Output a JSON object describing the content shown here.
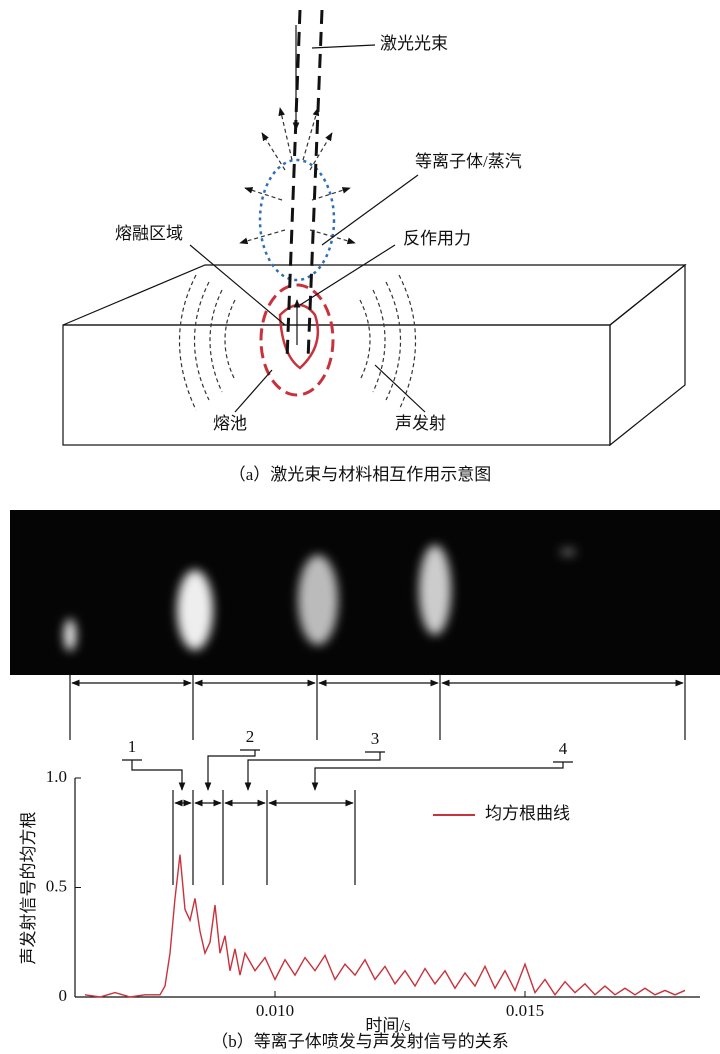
{
  "diagram": {
    "labels": {
      "laser_beam": "激光光束",
      "plasma_vapor": "等离子体/蒸汽",
      "melt_zone": "熔融区域",
      "reaction_force": "反作用力",
      "melt_pool": "熔池",
      "acoustic_emission": "声发射"
    },
    "caption": "（a）激光束与材料相互作用示意图"
  },
  "image_strip": {
    "segment_labels": [
      "1",
      "2",
      "3",
      "4"
    ]
  },
  "chart_data": {
    "type": "line",
    "xlabel": "时间/s",
    "ylabel": "声发射信号的均方根",
    "caption": "（b）等离子体喷发与声发射信号的关系",
    "x": [
      0.0062,
      0.0065,
      0.0068,
      0.0071,
      0.0074,
      0.0077,
      0.0078,
      0.0079,
      0.008,
      0.0081,
      0.0082,
      0.0083,
      0.0084,
      0.0085,
      0.0086,
      0.0087,
      0.0088,
      0.0089,
      0.009,
      0.0091,
      0.0092,
      0.0093,
      0.0094,
      0.0096,
      0.0098,
      0.01,
      0.0102,
      0.0104,
      0.0106,
      0.0108,
      0.011,
      0.0112,
      0.0114,
      0.0116,
      0.0118,
      0.012,
      0.0122,
      0.0124,
      0.0126,
      0.0128,
      0.013,
      0.0132,
      0.0134,
      0.0136,
      0.0138,
      0.014,
      0.0142,
      0.0144,
      0.0146,
      0.0148,
      0.015,
      0.0152,
      0.0154,
      0.0156,
      0.0158,
      0.016,
      0.0162,
      0.0164,
      0.0166,
      0.0168,
      0.017,
      0.0172,
      0.0174,
      0.0176,
      0.0178,
      0.018,
      0.0182
    ],
    "series": [
      {
        "name": "均方根曲线",
        "color": "#c8323c",
        "values": [
          0.01,
          0,
          0.02,
          0,
          0.01,
          0.01,
          0.05,
          0.2,
          0.45,
          0.65,
          0.4,
          0.35,
          0.45,
          0.3,
          0.2,
          0.25,
          0.42,
          0.2,
          0.28,
          0.12,
          0.22,
          0.1,
          0.2,
          0.12,
          0.18,
          0.08,
          0.17,
          0.1,
          0.18,
          0.12,
          0.19,
          0.08,
          0.15,
          0.1,
          0.17,
          0.08,
          0.14,
          0.06,
          0.12,
          0.05,
          0.13,
          0.06,
          0.12,
          0.04,
          0.11,
          0.05,
          0.14,
          0.04,
          0.12,
          0.03,
          0.15,
          0.02,
          0.08,
          0.01,
          0.07,
          0.02,
          0.06,
          0.01,
          0.05,
          0.01,
          0.04,
          0.01,
          0.04,
          0.01,
          0.03,
          0.01,
          0.03
        ]
      }
    ],
    "xlim": [
      0.006,
      0.0185
    ],
    "ylim": [
      0,
      1
    ],
    "xticks": [
      {
        "value": 0.01,
        "label": "0.010"
      },
      {
        "value": 0.015,
        "label": "0.015"
      }
    ],
    "yticks": [
      0,
      0.5,
      {
        "value": 1,
        "label": "1.0"
      }
    ],
    "legend": "upper right"
  }
}
